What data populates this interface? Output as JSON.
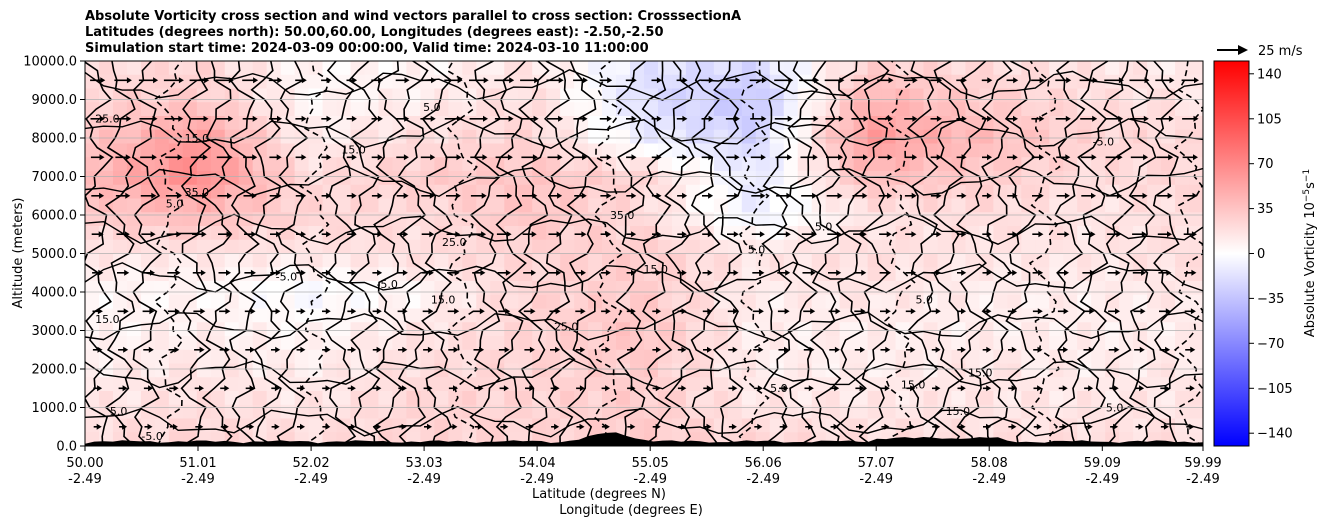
{
  "title_lines": [
    "Absolute Vorticity cross section and wind vectors parallel to cross section: CrosssectionA",
    "Latitudes (degrees north): 50.00,60.00, Longitudes (degrees east): -2.50,-2.50",
    "Simulation start time: 2024-03-09 00:00:00, Valid time: 2024-03-10 11:00:00"
  ],
  "wind_key_label": "25 m/s",
  "chart_data": {
    "type": "heatmap",
    "x_axis": {
      "label_line1": "Latitude (degrees N)",
      "label_line2": "Longitude (degrees E)",
      "latitudes": [
        "50.00",
        "51.01",
        "52.02",
        "53.03",
        "54.04",
        "55.05",
        "56.06",
        "57.07",
        "58.08",
        "59.09",
        "59.99"
      ],
      "longitudes": [
        "-2.49",
        "-2.49",
        "-2.49",
        "-2.49",
        "-2.49",
        "-2.49",
        "-2.49",
        "-2.49",
        "-2.49",
        "-2.49",
        "-2.49"
      ],
      "xlim": [
        50.0,
        59.99
      ]
    },
    "y_axis": {
      "label": "Altitude (meters)",
      "ticks": [
        "0.0",
        "1000.0",
        "2000.0",
        "3000.0",
        "4000.0",
        "5000.0",
        "6000.0",
        "7000.0",
        "8000.0",
        "9000.0",
        "10000.0"
      ],
      "ylim": [
        0,
        10000
      ]
    },
    "grid": "horizontal",
    "colorbar": {
      "label": "Absolute Vorticity 10$^{-5}$s$^{-1}$",
      "label_main": "Absolute Vorticity 10",
      "label_exp1": "−5",
      "label_unit": "s",
      "label_exp2": "−1",
      "ticks": [
        "140",
        "105",
        "70",
        "35",
        "0",
        "−35",
        "−70",
        "−105",
        "−140"
      ],
      "range": [
        -150,
        150
      ],
      "colors": {
        "min": "#0000ff",
        "mid": "#ffffff",
        "max": "#ff0000"
      }
    },
    "field_samples": {
      "x": [
        50.0,
        51.0,
        52.0,
        53.0,
        54.0,
        55.0,
        56.0,
        57.0,
        58.0,
        59.0,
        59.99
      ],
      "y": [
        0,
        1000,
        2000,
        3000,
        4000,
        5000,
        6000,
        7000,
        8000,
        9000,
        10000
      ],
      "values": [
        [
          20,
          25,
          20,
          25,
          25,
          30,
          25,
          20,
          20,
          20,
          20
        ],
        [
          15,
          20,
          15,
          25,
          25,
          30,
          15,
          15,
          15,
          15,
          15
        ],
        [
          10,
          15,
          10,
          20,
          25,
          30,
          10,
          10,
          15,
          10,
          15
        ],
        [
          5,
          10,
          5,
          15,
          25,
          35,
          10,
          10,
          10,
          10,
          10
        ],
        [
          5,
          5,
          -5,
          5,
          25,
          30,
          10,
          15,
          10,
          10,
          15
        ],
        [
          15,
          15,
          15,
          20,
          25,
          30,
          15,
          20,
          15,
          15,
          20
        ],
        [
          30,
          40,
          25,
          20,
          35,
          20,
          -10,
          15,
          20,
          15,
          20
        ],
        [
          40,
          70,
          20,
          30,
          35,
          25,
          -15,
          40,
          30,
          20,
          25
        ],
        [
          30,
          60,
          10,
          20,
          25,
          -10,
          -25,
          60,
          40,
          25,
          20
        ],
        [
          25,
          30,
          5,
          10,
          20,
          -20,
          -35,
          45,
          30,
          20,
          15
        ],
        [
          15,
          25,
          5,
          5,
          15,
          -15,
          -20,
          25,
          20,
          15,
          10
        ]
      ]
    },
    "contour_labels": [
      {
        "text": "5.0",
        "x": 50.8,
        "y": 6200
      },
      {
        "text": "35.0",
        "x": 51.0,
        "y": 6500
      },
      {
        "text": "15.0",
        "x": 51.0,
        "y": 7900
      },
      {
        "text": "25.0",
        "x": 50.2,
        "y": 8400
      },
      {
        "text": "-5.0",
        "x": 51.8,
        "y": 4300
      },
      {
        "text": "-5.0",
        "x": 52.7,
        "y": 4100
      },
      {
        "text": "5.0",
        "x": 53.1,
        "y": 8700
      },
      {
        "text": "15.0",
        "x": 52.4,
        "y": 7600
      },
      {
        "text": "25.0",
        "x": 53.3,
        "y": 5200
      },
      {
        "text": "35.0",
        "x": 54.8,
        "y": 5900
      },
      {
        "text": "5.0",
        "x": 56.0,
        "y": 5000
      },
      {
        "text": "5.0",
        "x": 56.6,
        "y": 5600
      },
      {
        "text": "5.0",
        "x": 57.5,
        "y": 3700
      },
      {
        "text": "15.0",
        "x": 57.4,
        "y": 1500
      },
      {
        "text": "15.0",
        "x": 58.0,
        "y": 1800
      },
      {
        "text": "5.0",
        "x": 56.2,
        "y": 1400
      },
      {
        "text": "5.0",
        "x": 59.2,
        "y": 900
      },
      {
        "text": "-5.0",
        "x": 59.1,
        "y": 7800
      },
      {
        "text": "15.0",
        "x": 50.2,
        "y": 3200
      },
      {
        "text": "15.0",
        "x": 53.2,
        "y": 3700
      },
      {
        "text": "25.0",
        "x": 54.3,
        "y": 3000
      },
      {
        "text": "15.0",
        "x": 55.1,
        "y": 4500
      },
      {
        "text": "5.0",
        "x": 50.3,
        "y": 800
      },
      {
        "text": "-5.0",
        "x": 50.6,
        "y": 150
      },
      {
        "text": "15.0",
        "x": 57.8,
        "y": 800
      }
    ]
  }
}
